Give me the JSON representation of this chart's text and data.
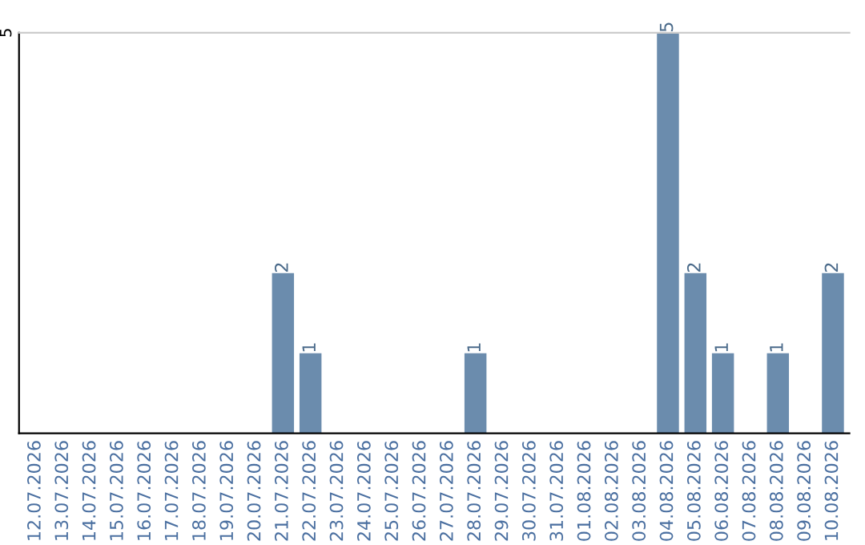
{
  "chart_data": {
    "type": "bar",
    "categories": [
      "12.07.2026",
      "13.07.2026",
      "14.07.2026",
      "15.07.2026",
      "16.07.2026",
      "17.07.2026",
      "18.07.2026",
      "19.07.2026",
      "20.07.2026",
      "21.07.2026",
      "22.07.2026",
      "23.07.2026",
      "24.07.2026",
      "25.07.2026",
      "26.07.2026",
      "27.07.2026",
      "28.07.2026",
      "29.07.2026",
      "30.07.2026",
      "31.07.2026",
      "01.08.2026",
      "02.08.2026",
      "03.08.2026",
      "04.08.2026",
      "05.08.2026",
      "06.08.2026",
      "07.08.2026",
      "08.08.2026",
      "09.08.2026",
      "10.08.2026"
    ],
    "values": [
      0,
      0,
      0,
      0,
      0,
      0,
      0,
      0,
      0,
      2,
      1,
      0,
      0,
      0,
      0,
      0,
      1,
      0,
      0,
      0,
      0,
      0,
      0,
      5,
      2,
      1,
      0,
      1,
      0,
      2
    ],
    "value_labels": [
      null,
      null,
      null,
      null,
      null,
      null,
      null,
      null,
      null,
      "2",
      "1",
      null,
      null,
      null,
      null,
      null,
      "1",
      null,
      null,
      null,
      null,
      null,
      null,
      "5",
      "2",
      "1",
      null,
      "1",
      null,
      "2"
    ],
    "color": "#6b8cad",
    "ylim": [
      0,
      5
    ],
    "yticks": [
      5
    ],
    "legend": false
  }
}
